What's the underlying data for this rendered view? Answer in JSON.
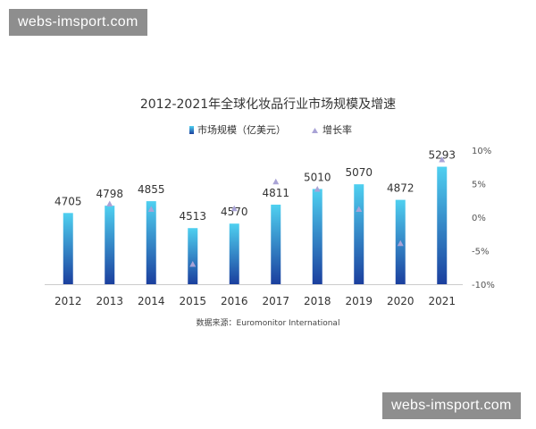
{
  "watermark": {
    "top": "webs-imsport.com",
    "bottom": "webs-imsport.com"
  },
  "chart_data": {
    "type": "bar",
    "title": "2012-2021年全球化妆品行业市场规模及增速",
    "categories": [
      "2012",
      "2013",
      "2014",
      "2015",
      "2016",
      "2017",
      "2018",
      "2019",
      "2020",
      "2021"
    ],
    "series": [
      {
        "name": "市场规模（亿美元）",
        "type": "bar",
        "axis": "left",
        "values": [
          4705,
          4798,
          4855,
          4513,
          4570,
          4811,
          5010,
          5070,
          4872,
          5293
        ]
      },
      {
        "name": "增长率",
        "type": "scatter",
        "axis": "right",
        "marker": "triangle",
        "values": [
          null,
          2.0,
          1.2,
          -7.0,
          1.3,
          5.3,
          4.2,
          1.2,
          -3.9,
          8.6
        ]
      }
    ],
    "y_right_ticks": [
      "10%",
      "5%",
      "0%",
      "-5%",
      "-10%"
    ],
    "ylim_right": [
      -10,
      10
    ],
    "legend_placement": "top",
    "grid": false,
    "source": "数据来源：Euromonitor International",
    "colors": {
      "bar_top": "#4fd0f0",
      "bar_bottom": "#1b3f9e",
      "marker": "#a9a3d6",
      "text": "#333333",
      "axis": "#cccccc"
    }
  }
}
